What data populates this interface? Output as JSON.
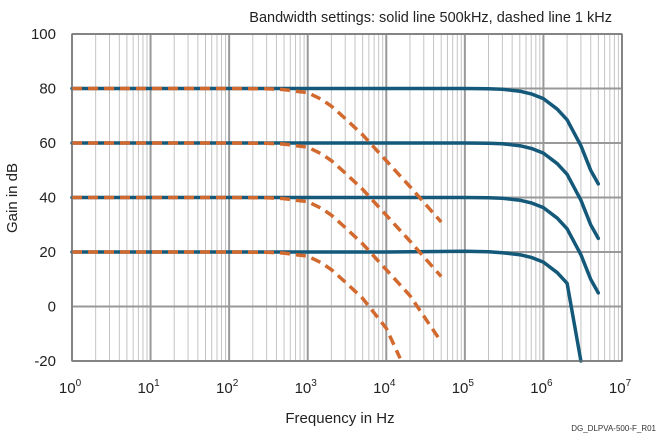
{
  "chart_data": {
    "type": "line",
    "title": "Bandwidth settings: solid line 500kHz, dashed line 1 kHz",
    "xlabel": "Frequency in Hz",
    "ylabel": "Gain in dB",
    "note": "DG_DLPVA-500-F_R01",
    "x_scale": "log",
    "xlim": [
      1,
      10000000
    ],
    "ylim": [
      -20,
      100
    ],
    "x_tick_base": "10",
    "x_tick_exponents": [
      "0",
      "1",
      "2",
      "3",
      "4",
      "5",
      "6",
      "7"
    ],
    "y_ticks": [
      "100",
      "80",
      "60",
      "40",
      "20",
      "0",
      "-20"
    ],
    "grid": true,
    "colors": {
      "solid": "#14587a",
      "dashed": "#d2692e",
      "grid_major": "#999999",
      "grid_minor": "#c4c4c4"
    },
    "series": [
      {
        "style": "solid",
        "x": [
          1,
          10,
          100,
          1000,
          10000,
          100000,
          200000,
          300000,
          500000,
          700000,
          1000000,
          1500000,
          2000000,
          3000000,
          4000000,
          5000000
        ],
        "y": [
          80,
          80,
          80,
          80,
          80,
          80,
          79.9,
          79.7,
          79,
          78,
          76.3,
          72.4,
          68.5,
          59,
          50,
          45
        ]
      },
      {
        "style": "solid",
        "x": [
          1,
          10,
          100,
          1000,
          10000,
          100000,
          200000,
          300000,
          500000,
          700000,
          1000000,
          1500000,
          2000000,
          3000000,
          4000000,
          5000000
        ],
        "y": [
          60,
          60,
          60,
          60,
          60,
          60,
          59.9,
          59.7,
          59,
          58,
          56.3,
          52.4,
          48.5,
          39,
          30,
          25
        ]
      },
      {
        "style": "solid",
        "x": [
          1,
          10,
          100,
          1000,
          10000,
          100000,
          200000,
          300000,
          500000,
          700000,
          1000000,
          1500000,
          2000000,
          3000000,
          4000000,
          5000000
        ],
        "y": [
          40,
          40,
          40,
          40,
          40,
          40,
          39.9,
          39.7,
          39,
          38,
          36.3,
          32.4,
          28.5,
          19,
          10,
          5
        ]
      },
      {
        "style": "solid",
        "x": [
          1,
          10,
          100,
          1000,
          10000,
          100000,
          200000,
          300000,
          500000,
          700000,
          1000000,
          1500000,
          2000000,
          3000000
        ],
        "y": [
          20,
          20,
          20,
          20,
          20,
          20.3,
          20.1,
          19.7,
          19,
          18,
          16.3,
          12.4,
          8.5,
          -20
        ]
      },
      {
        "style": "dashed",
        "x": [
          1,
          10,
          100,
          300,
          500,
          700,
          1000,
          1500,
          2000,
          3000,
          5000,
          10000,
          20000,
          50000
        ],
        "y": [
          80,
          80,
          80,
          79.9,
          79.6,
          79,
          78.5,
          76,
          73.5,
          69,
          63,
          53.5,
          44,
          31
        ]
      },
      {
        "style": "dashed",
        "x": [
          1,
          10,
          100,
          300,
          500,
          700,
          1000,
          1500,
          2000,
          3000,
          5000,
          10000,
          20000,
          50000
        ],
        "y": [
          60,
          60,
          60,
          59.9,
          59.6,
          59,
          58.5,
          56,
          53.5,
          49,
          43,
          33.5,
          24,
          11
        ]
      },
      {
        "style": "dashed",
        "x": [
          1,
          10,
          100,
          300,
          500,
          700,
          1000,
          1500,
          2000,
          3000,
          5000,
          10000,
          20000,
          50000
        ],
        "y": [
          40,
          40,
          40,
          39.9,
          39.6,
          39,
          38.5,
          36,
          33.5,
          29,
          23,
          13.5,
          4,
          -13
        ]
      },
      {
        "style": "dashed",
        "x": [
          1,
          10,
          100,
          300,
          500,
          700,
          1000,
          1500,
          2000,
          3000,
          5000,
          10000,
          15000
        ],
        "y": [
          20,
          20,
          20,
          19.9,
          19.6,
          19,
          18.5,
          16,
          13.5,
          9,
          3,
          -8,
          -19
        ]
      }
    ]
  }
}
